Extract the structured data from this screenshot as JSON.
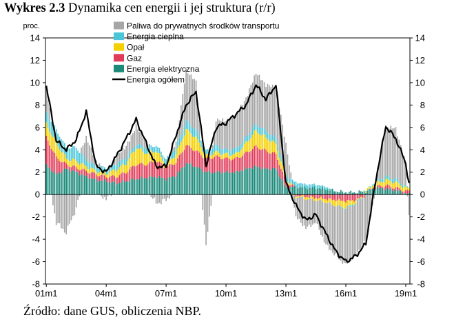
{
  "title_prefix": "Wykres 2.3",
  "title_text": "Dynamika cen energii i jej struktura (r/r)",
  "source_text": "Źródło: dane GUS, obliczenia NBP.",
  "chart_data": {
    "type": "bar",
    "stacked": true,
    "unit": "proc.",
    "ylim": [
      -8,
      14
    ],
    "yticks": [
      -8,
      -6,
      -4,
      -2,
      0,
      2,
      4,
      6,
      8,
      10,
      12,
      14
    ],
    "x_range": [
      "2001-01",
      "2019-03"
    ],
    "xtick_labels": [
      "01m1",
      "04m1",
      "07m1",
      "10m1",
      "13m1",
      "16m1",
      "19m1"
    ],
    "anchor_months": [
      0,
      6,
      12,
      18,
      24,
      30,
      36,
      42,
      48,
      54,
      60,
      66,
      72,
      78,
      84,
      90,
      96,
      102,
      108,
      114,
      120,
      126,
      132,
      138,
      144,
      150,
      156,
      162,
      168,
      174,
      180,
      186,
      192,
      198,
      204,
      210,
      216,
      218
    ],
    "series": [
      {
        "name": "Paliwa do prywatnych środków transportu",
        "color": "#a6a6a6",
        "values": [
          2.4,
          -2.5,
          -3.4,
          -1.2,
          2.0,
          0.5,
          -0.5,
          0.8,
          1.0,
          1.6,
          0.6,
          -0.8,
          -0.5,
          0.5,
          4.5,
          4.3,
          -4.3,
          2.3,
          2.6,
          3.0,
          3.5,
          4.6,
          4.1,
          4.6,
          2.7,
          -1.8,
          -2.6,
          -2.0,
          -3.8,
          -4.5,
          -5.0,
          -4.6,
          -4.0,
          0.3,
          4.5,
          4.5,
          2.1,
          -2.0
        ]
      },
      {
        "name": "Energia cieplna",
        "color": "#4bc6d8",
        "values": [
          1.0,
          1.2,
          1.0,
          1.2,
          0.6,
          0.4,
          0.5,
          0.5,
          0.5,
          0.3,
          0.5,
          0.5,
          0.5,
          0.6,
          0.8,
          0.7,
          0.4,
          0.6,
          0.4,
          0.5,
          0.5,
          0.6,
          0.6,
          0.5,
          0.4,
          0.4,
          0.3,
          0.3,
          0.2,
          0.0,
          -0.1,
          -0.1,
          0.0,
          0.2,
          0.3,
          0.3,
          0.1,
          0.1
        ]
      },
      {
        "name": "Opał",
        "color": "#f5d000",
        "values": [
          1.2,
          1.3,
          0.5,
          0.6,
          0.4,
          0.3,
          0.3,
          0.6,
          0.8,
          1.5,
          1.0,
          0.9,
          0.3,
          0.7,
          1.4,
          1.2,
          0.3,
          0.4,
          0.4,
          0.4,
          0.9,
          1.4,
          1.2,
          0.9,
          0.3,
          -0.1,
          -0.2,
          -0.2,
          -0.3,
          -0.5,
          -0.6,
          -0.2,
          0.1,
          0.3,
          0.5,
          0.5,
          0.3,
          0.2
        ]
      },
      {
        "name": "Gaz",
        "color": "#e03c5a",
        "values": [
          2.5,
          1.5,
          0.4,
          0.4,
          0.5,
          0.5,
          0.4,
          0.6,
          0.8,
          1.3,
          1.2,
          1.4,
          1.0,
          1.2,
          1.6,
          1.4,
          1.2,
          1.4,
          1.2,
          1.2,
          1.4,
          1.8,
          1.6,
          1.3,
          0.5,
          -0.1,
          -0.2,
          -0.3,
          -0.4,
          -0.5,
          -0.6,
          -0.5,
          -0.1,
          0.1,
          0.3,
          0.2,
          0.2,
          0.3
        ]
      },
      {
        "name": "Energia elektryczna",
        "color": "#1b8a7a",
        "values": [
          2.6,
          1.8,
          2.3,
          2.0,
          1.6,
          1.3,
          1.2,
          1.0,
          1.2,
          1.4,
          1.5,
          1.6,
          1.4,
          1.7,
          2.8,
          2.5,
          2.0,
          2.0,
          2.0,
          2.0,
          2.3,
          2.5,
          2.3,
          2.3,
          0.6,
          0.7,
          0.6,
          0.6,
          0.5,
          0.3,
          0.2,
          0.2,
          0.3,
          0.6,
          0.5,
          0.4,
          0.1,
          0.0
        ]
      }
    ],
    "line": {
      "name": "Energia ogółem",
      "color": "#000000",
      "values": [
        9.7,
        4.8,
        4.0,
        4.9,
        7.4,
        2.5,
        2.0,
        3.4,
        5.0,
        6.7,
        4.6,
        2.5,
        2.5,
        5.3,
        8.0,
        9.2,
        2.6,
        6.0,
        6.4,
        7.2,
        8.0,
        9.8,
        8.5,
        9.8,
        1.0,
        -1.0,
        -2.3,
        -1.8,
        -3.5,
        -5.1,
        -6.0,
        -5.5,
        -4.4,
        1.3,
        6.1,
        5.0,
        2.8,
        0.9
      ]
    }
  }
}
